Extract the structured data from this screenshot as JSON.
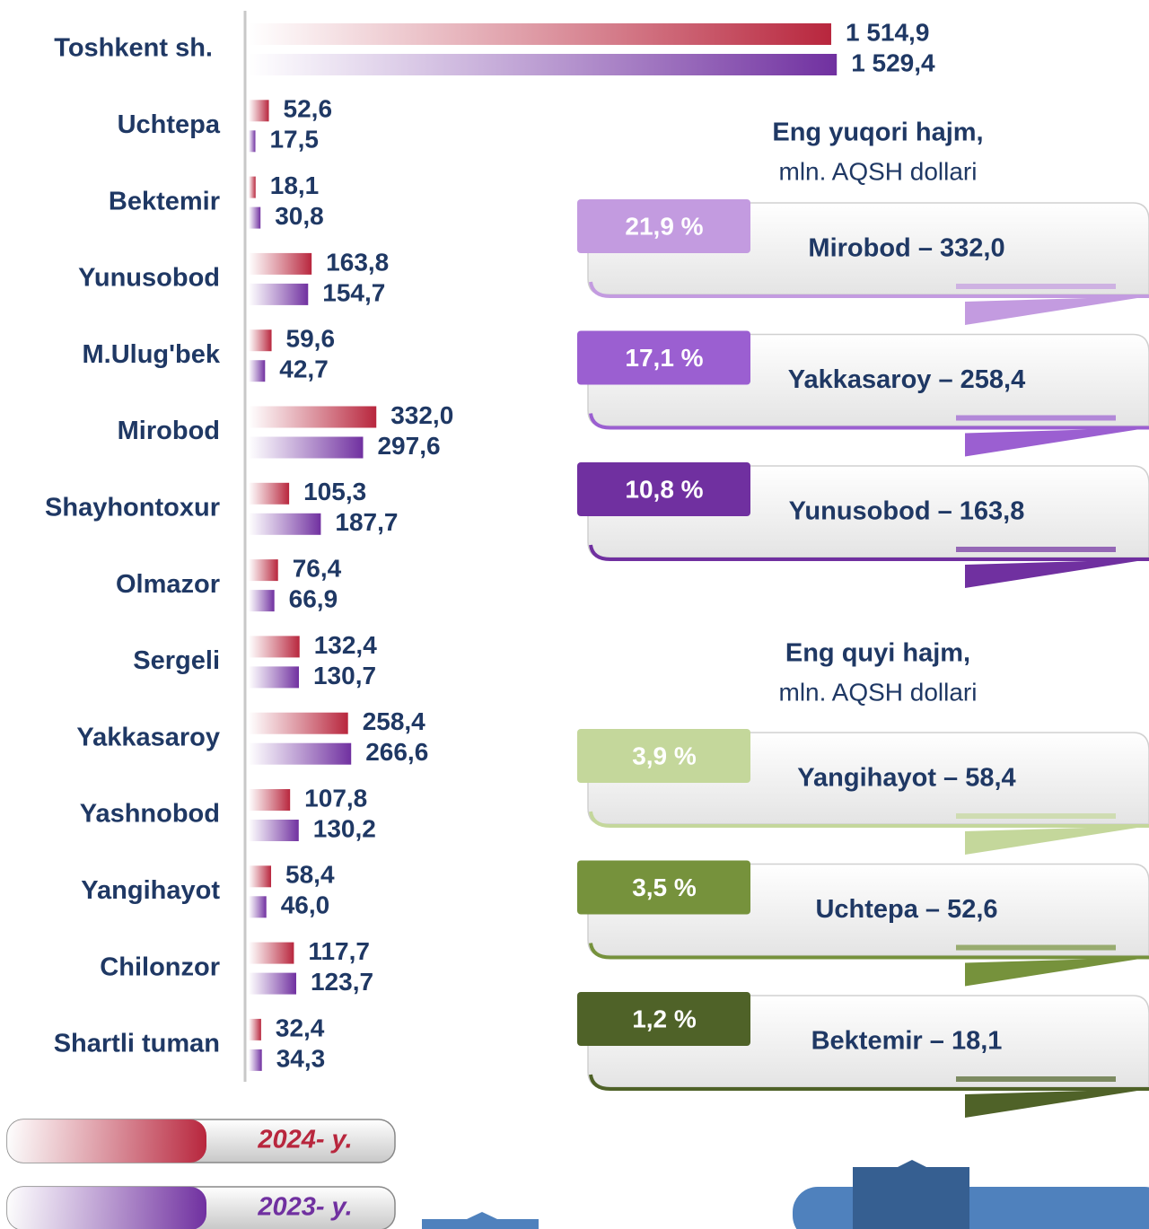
{
  "chart_data": {
    "type": "bar",
    "categories": [
      "Toshkent sh.",
      "Uchtepa",
      "Bektemir",
      "Yunusobod",
      "M.Ulug'bek",
      "Mirobod",
      "Shayhontoxur",
      "Olmazor",
      "Sergeli",
      "Yakkasaroy",
      "Yashnobod",
      "Yangihayot",
      "Chilonzor",
      "Shartli tuman"
    ],
    "series": [
      {
        "name": "2024- y.",
        "color": "#b8263d",
        "values": [
          1514.9,
          52.6,
          18.1,
          163.8,
          59.6,
          332.0,
          105.3,
          76.4,
          132.4,
          258.4,
          107.8,
          58.4,
          117.7,
          32.4
        ],
        "value_labels": [
          "1 514,9",
          "52,6",
          "18,1",
          "163,8",
          "59,6",
          "332,0",
          "105,3",
          "76,4",
          "132,4",
          "258,4",
          "107,8",
          "58,4",
          "117,7",
          "32,4"
        ]
      },
      {
        "name": "2023- y.",
        "color": "#7030a0",
        "values": [
          1529.4,
          17.5,
          30.8,
          154.7,
          42.7,
          297.6,
          187.7,
          66.9,
          130.7,
          266.6,
          130.2,
          46.0,
          123.7,
          34.3
        ],
        "value_labels": [
          "1 529,4",
          "17,5",
          "30,8",
          "154,7",
          "42,7",
          "297,6",
          "187,7",
          "66,9",
          "130,7",
          "266,6",
          "130,2",
          "46,0",
          "123,7",
          "34,3"
        ]
      }
    ]
  },
  "highlights": [
    {
      "title": "Eng yuqori hajm,",
      "subtitle": "mln. AQSH dollari",
      "items": [
        {
          "share": "21,9 %",
          "label": "Mirobod – 332,0",
          "color": "#c39be0"
        },
        {
          "share": "17,1 %",
          "label": "Yakkasaroy – 258,4",
          "color": "#9b5fd1"
        },
        {
          "share": "10,8 %",
          "label": "Yunusobod – 163,8",
          "color": "#7030a0"
        }
      ]
    },
    {
      "title": "Eng quyi hajm,",
      "subtitle": "mln. AQSH dollari",
      "items": [
        {
          "share": "3,9 %",
          "label": "Yangihayot – 58,4",
          "color": "#c4d79b"
        },
        {
          "share": "3,5 %",
          "label": "Uchtepa – 52,6",
          "color": "#76923c"
        },
        {
          "share": "1,2 %",
          "label": "Bektemir – 18,1",
          "color": "#4f6228"
        }
      ]
    }
  ]
}
